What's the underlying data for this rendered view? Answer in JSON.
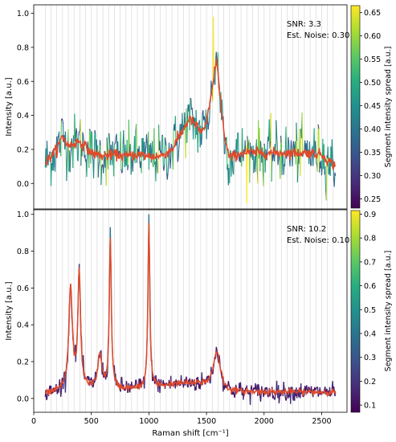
{
  "chart_data": [
    {
      "type": "line",
      "panel": "top",
      "annotation_lines": [
        "SNR: 3.3",
        "Est. Noise: 0.30"
      ],
      "xlabel": "",
      "ylabel": "Intensity [a.u.]",
      "xlim": [
        0,
        2720
      ],
      "ylim": [
        -0.15,
        1.05
      ],
      "xticks": [
        0,
        500,
        1000,
        1500,
        2000,
        2500
      ],
      "yticks": [
        0.0,
        0.2,
        0.4,
        0.6,
        0.8,
        1.0
      ],
      "ytick_labels": [
        "0.0",
        "0.2",
        "0.4",
        "0.6",
        "0.8",
        "1.0"
      ],
      "grid": "vertical gridlines every 50 cm^-1",
      "colorbar": {
        "label": "Segment intensity spread [a.u.]",
        "range": [
          0.23,
          0.665
        ],
        "ticks": [
          0.25,
          0.3,
          0.35,
          0.4,
          0.45,
          0.5,
          0.55,
          0.6,
          0.65
        ],
        "tick_labels": [
          "0.25",
          "0.30",
          "0.35",
          "0.40",
          "0.45",
          "0.50",
          "0.55",
          "0.60",
          "0.65"
        ],
        "colormap": "viridis"
      },
      "x_range": [
        100,
        2620
      ],
      "noisy_series_color": "viridis by segment spread",
      "smoothed_series_color": "#e04a2a",
      "smoothed_points": [
        [
          100,
          0.12
        ],
        [
          200,
          0.2
        ],
        [
          250,
          0.28
        ],
        [
          300,
          0.22
        ],
        [
          400,
          0.25
        ],
        [
          500,
          0.18
        ],
        [
          600,
          0.16
        ],
        [
          700,
          0.17
        ],
        [
          800,
          0.16
        ],
        [
          900,
          0.17
        ],
        [
          1000,
          0.16
        ],
        [
          1100,
          0.16
        ],
        [
          1200,
          0.2
        ],
        [
          1300,
          0.32
        ],
        [
          1350,
          0.38
        ],
        [
          1400,
          0.35
        ],
        [
          1450,
          0.3
        ],
        [
          1500,
          0.35
        ],
        [
          1550,
          0.55
        ],
        [
          1585,
          0.74
        ],
        [
          1620,
          0.5
        ],
        [
          1660,
          0.25
        ],
        [
          1700,
          0.15
        ],
        [
          1800,
          0.18
        ],
        [
          2000,
          0.18
        ],
        [
          2200,
          0.18
        ],
        [
          2400,
          0.18
        ],
        [
          2500,
          0.17
        ],
        [
          2620,
          0.1
        ]
      ],
      "raw_peaks": [
        {
          "x": 1560,
          "y": 0.98
        },
        {
          "x": 1600,
          "y": 0.77
        }
      ]
    },
    {
      "type": "line",
      "panel": "bottom",
      "annotation_lines": [
        "SNR: 10.2",
        "Est. Noise: 0.10"
      ],
      "xlabel": "Raman shift [cm⁻¹]",
      "ylabel": "Intensity [a.u.]",
      "xlim": [
        0,
        2720
      ],
      "ylim": [
        -0.075,
        1.025
      ],
      "xticks": [
        0,
        500,
        1000,
        1500,
        2000,
        2500
      ],
      "xtick_labels": [
        "0",
        "500",
        "1000",
        "1500",
        "2000",
        "2500"
      ],
      "yticks": [
        0.0,
        0.2,
        0.4,
        0.6,
        0.8,
        1.0
      ],
      "ytick_labels": [
        "0.0",
        "0.2",
        "0.4",
        "0.6",
        "0.8",
        "1.0"
      ],
      "grid": "vertical gridlines every 50 cm^-1",
      "colorbar": {
        "label": "Segment intensity spread [a.u.]",
        "range": [
          0.07,
          0.915
        ],
        "ticks": [
          0.1,
          0.2,
          0.3,
          0.4,
          0.5,
          0.6,
          0.7,
          0.8,
          0.9
        ],
        "tick_labels": [
          "0.1",
          "0.2",
          "0.3",
          "0.4",
          "0.5",
          "0.6",
          "0.7",
          "0.8",
          "0.9"
        ],
        "colormap": "viridis"
      },
      "x_range": [
        100,
        2620
      ],
      "noisy_series_color": "viridis by segment spread",
      "smoothed_series_color": "#e04a2a",
      "peaks": [
        {
          "x": 320,
          "height": 0.55,
          "width": 18
        },
        {
          "x": 395,
          "height": 0.62,
          "width": 14
        },
        {
          "x": 575,
          "height": 0.18,
          "width": 22
        },
        {
          "x": 665,
          "height": 0.82,
          "width": 10
        },
        {
          "x": 1000,
          "height": 0.9,
          "width": 10
        },
        {
          "x": 1590,
          "height": 0.2,
          "width": 35
        }
      ],
      "raw_peaks": [
        {
          "x": 665,
          "y": 0.93
        },
        {
          "x": 1000,
          "y": 1.0
        }
      ]
    }
  ]
}
